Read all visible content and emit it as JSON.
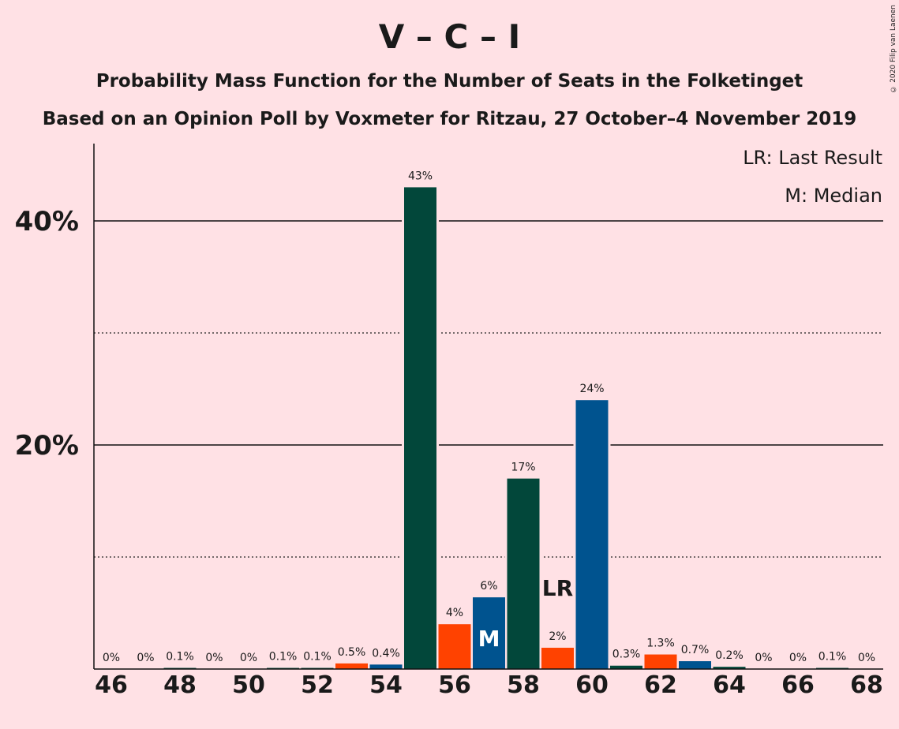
{
  "title": "V – C – I",
  "subtitle1": "Probability Mass Function for the Number of Seats in the Folketinget",
  "subtitle2": "Based on an Opinion Poll by Voxmeter for Ritzau, 27 October–4 November 2019",
  "credit": "© 2020 Filip van Laenen",
  "legend": {
    "lr": "LR: Last Result",
    "m": "M: Median"
  },
  "colors": {
    "background": "#FFE1E5",
    "dark_green": "#02473A",
    "orange": "#FF4200",
    "blue": "#00538F"
  },
  "chart_data": {
    "type": "bar",
    "categories": [
      46,
      47,
      48,
      49,
      50,
      51,
      52,
      53,
      54,
      55,
      56,
      57,
      58,
      59,
      60,
      61,
      62,
      63,
      64,
      65,
      66,
      67,
      68
    ],
    "values": [
      0,
      0,
      0.1,
      0,
      0,
      0.1,
      0.1,
      0.5,
      0.4,
      43,
      4,
      6.4,
      17,
      1.9,
      24,
      0.3,
      1.3,
      0.7,
      0.2,
      0,
      0,
      0.1,
      0
    ],
    "labels": [
      "0%",
      "0%",
      "0.1%",
      "0%",
      "0%",
      "0.1%",
      "0.1%",
      "0.5%",
      "0.4%",
      "43%",
      "4%",
      "6%",
      "17%",
      "2%",
      "24%",
      "0.3%",
      "1.3%",
      "0.7%",
      "0.2%",
      "0%",
      "0%",
      "0.1%",
      "0%"
    ],
    "bar_colors": [
      "dark_green",
      "dark_green",
      "dark_green",
      "dark_green",
      "dark_green",
      "dark_green",
      "dark_green",
      "orange",
      "blue",
      "dark_green",
      "orange",
      "blue",
      "dark_green",
      "orange",
      "blue",
      "dark_green",
      "orange",
      "blue",
      "dark_green",
      "dark_green",
      "dark_green",
      "dark_green",
      "dark_green"
    ],
    "x_tick_labels": [
      "46",
      "48",
      "50",
      "52",
      "54",
      "56",
      "58",
      "60",
      "62",
      "64",
      "66",
      "68"
    ],
    "y_tick_labels": [
      "20%",
      "40%"
    ],
    "ylim": [
      0,
      45
    ],
    "gridlines_solid": [
      20,
      40
    ],
    "gridlines_dotted": [
      10,
      30
    ],
    "median_seat": 57,
    "median_label": "M",
    "last_result_seat": 59,
    "last_result_label": "LR",
    "legend_position": "top-right"
  }
}
